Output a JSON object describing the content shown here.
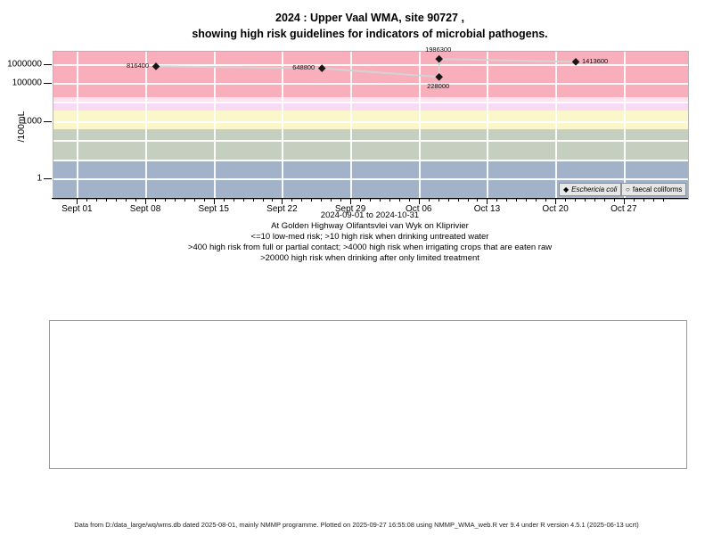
{
  "title": {
    "line1": "2024 : Upper Vaal WMA, site 90727 ,",
    "line2": "showing high risk guidelines for indicators of microbial pathogens."
  },
  "y_axis": {
    "label": "/100mL",
    "ticks": [
      {
        "value": 1,
        "label": "1"
      },
      {
        "value": 1000,
        "label": "1000"
      },
      {
        "value": 100000,
        "label": "100000"
      },
      {
        "value": 1000000,
        "label": "1000000"
      }
    ]
  },
  "x_axis": {
    "day_min": 0,
    "day_max": 60,
    "ticks": [
      {
        "day": 0,
        "label": "Sept 01"
      },
      {
        "day": 7,
        "label": "Sept 08"
      },
      {
        "day": 14,
        "label": "Sept 15"
      },
      {
        "day": 21,
        "label": "Sept 22"
      },
      {
        "day": 28,
        "label": "Sept 29"
      },
      {
        "day": 35,
        "label": "Oct 06"
      },
      {
        "day": 42,
        "label": "Oct 13"
      },
      {
        "day": 49,
        "label": "Oct 20"
      },
      {
        "day": 56,
        "label": "Oct 27"
      }
    ]
  },
  "chart_data": {
    "type": "line",
    "y_scale": "log10",
    "title": "2024 : Upper Vaal WMA, site 90727 , showing high risk guidelines for indicators of microbial pathogens.",
    "ylabel": "/100mL",
    "x_range": "2024-09-01 to 2024-10-31",
    "ylim_log10": [
      -1.03,
      6.68
    ],
    "line_color": "#d3d3d3",
    "marker_color": "#161616",
    "y_gridlines": [
      1,
      10,
      100,
      1000,
      10000,
      100000,
      1000000
    ],
    "bands": [
      {
        "from": 0.093,
        "to": 10,
        "color": "#a2b2c9"
      },
      {
        "from": 10,
        "to": 400,
        "color": "#c5cfc0"
      },
      {
        "from": 400,
        "to": 4000,
        "color": "#fbf7ca"
      },
      {
        "from": 4000,
        "to": 10000,
        "color": "#f8daf5"
      },
      {
        "from": 10000,
        "to": 20000,
        "color": "#ffe2ef"
      },
      {
        "from": 20000,
        "to": 4800000,
        "color": "#f8aebb"
      }
    ],
    "series": [
      {
        "name": "Eschericia coli",
        "marker": "filled-diamond",
        "points": [
          {
            "day": 8,
            "value": 816400,
            "label": "816400",
            "label_pos": "left"
          },
          {
            "day": 25,
            "value": 648800,
            "label": "648800",
            "label_pos": "left"
          },
          {
            "day": 37,
            "value": 228000,
            "label": "228000",
            "label_pos": "below"
          },
          {
            "day": 37,
            "value": 1986300,
            "label": "1986300",
            "label_pos": "above"
          },
          {
            "day": 51,
            "value": 1413600,
            "label": "1413600",
            "label_pos": "right"
          }
        ]
      },
      {
        "name": "faecal coliforms",
        "marker": "open-circle",
        "points": []
      }
    ]
  },
  "icons": {
    "filled_diamond": "◆",
    "open_circle": "○"
  },
  "captions": [
    "2024-09-01 to 2024-10-31",
    "At Golden Highway Olifantsvlei van Wyk on Kliprivier",
    "<=10 low-med risk; >10 high risk when drinking untreated water",
    ">400 high risk from full or partial contact; >4000 high risk when irrigating crops that are eaten raw",
    ">20000 high risk when drinking after only limited treatment"
  ],
  "footer": "Data from D:/data_large/wq/wms.db dated 2025-08-01, mainly NMMP programme. Plotted on 2025-09-27 16:55:08 using NMMP_WMA_web.R ver 9.4 under R version 4.5.1 (2025-06-13 ucrt)"
}
